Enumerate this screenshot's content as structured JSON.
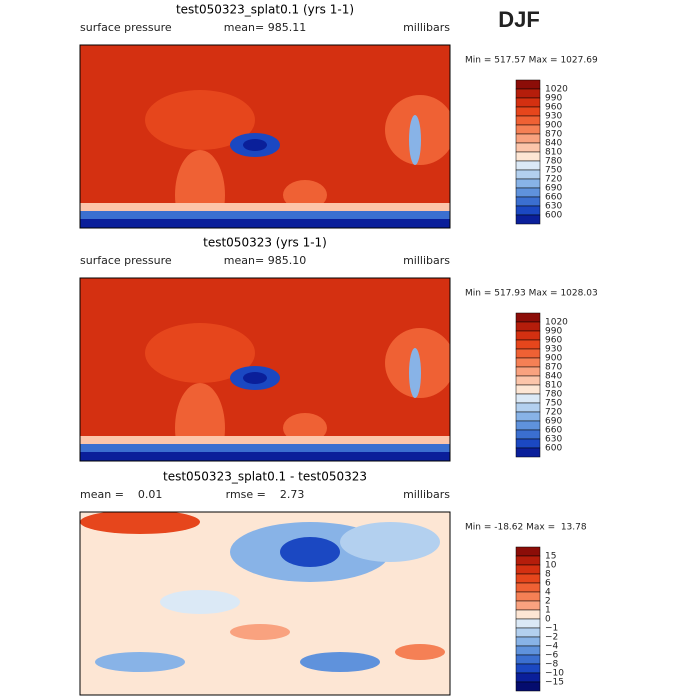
{
  "header": {
    "season": "DJF"
  },
  "panels": [
    {
      "title": "test050323_splat0.1 (yrs 1-1)",
      "left_label": "surface pressure",
      "center_label": "mean= 985.11",
      "right_label": "millibars",
      "range_text": "Min = 517.57 Max = 1027.69",
      "colorbar": {
        "labels": [
          "1020",
          "990",
          "960",
          "930",
          "900",
          "870",
          "840",
          "810",
          "780",
          "750",
          "720",
          "690",
          "660",
          "630",
          "600"
        ],
        "colors": [
          "#8c0d08",
          "#b51d0b",
          "#d43011",
          "#e6461c",
          "#ef6134",
          "#f58055",
          "#f9a27f",
          "#fcc5aa",
          "#fde6d4",
          "#dbe9f6",
          "#b3d0ef",
          "#88b3e7",
          "#5f92dc",
          "#3b6fd0",
          "#1b48c2",
          "#0a1f9a"
        ]
      }
    },
    {
      "title": "test050323 (yrs 1-1)",
      "left_label": "surface pressure",
      "center_label": "mean= 985.10",
      "right_label": "millibars",
      "range_text": "Min = 517.93 Max = 1028.03",
      "colorbar": {
        "labels": [
          "1020",
          "990",
          "960",
          "930",
          "900",
          "870",
          "840",
          "810",
          "780",
          "750",
          "720",
          "690",
          "660",
          "630",
          "600"
        ],
        "colors": [
          "#8c0d08",
          "#b51d0b",
          "#d43011",
          "#e6461c",
          "#ef6134",
          "#f58055",
          "#f9a27f",
          "#fcc5aa",
          "#fde6d4",
          "#dbe9f6",
          "#b3d0ef",
          "#88b3e7",
          "#5f92dc",
          "#3b6fd0",
          "#1b48c2",
          "#0a1f9a"
        ]
      }
    },
    {
      "title": "test050323_splat0.1 - test050323",
      "left_label": "mean =    0.01",
      "center_label": "rmse =    2.73",
      "right_label": "millibars",
      "range_text": "Min = -18.62 Max =  13.78",
      "colorbar": {
        "labels": [
          "15",
          "10",
          "8",
          "6",
          "4",
          "2",
          "1",
          "0",
          "−1",
          "−2",
          "−4",
          "−6",
          "−8",
          "−10",
          "−15"
        ],
        "colors": [
          "#8c0d08",
          "#b51d0b",
          "#d43011",
          "#e6461c",
          "#ef6134",
          "#f58055",
          "#f9a27f",
          "#fde6d4",
          "#dbe9f6",
          "#b3d0ef",
          "#88b3e7",
          "#5f92dc",
          "#3b6fd0",
          "#1b48c2",
          "#0a1f9a",
          "#040c6e"
        ]
      }
    }
  ]
}
